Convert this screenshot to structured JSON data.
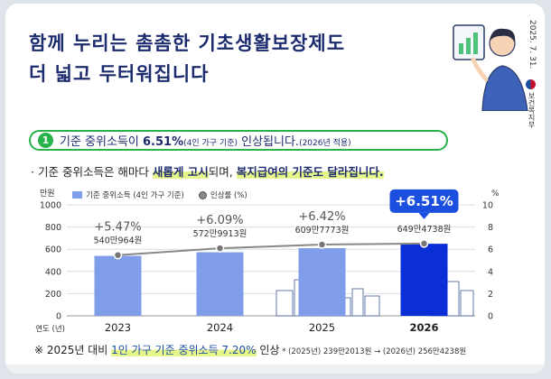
{
  "header": {
    "title_line1": "함께 누리는 촘촘한 기초생활보장제도",
    "title_line2": "더 넓고 두터워집니다",
    "date": "2025. 7. 31.",
    "ministry": "보건복지부"
  },
  "highlight": {
    "number": "1",
    "text_pre": "기준 중위소득이 ",
    "text_pct": "6.51%",
    "text_small": "(4인 가구 기준)",
    "text_post": " 인상됩니다.",
    "text_tail": "(2026년 적용)"
  },
  "subtitle": {
    "bullet": "·",
    "part1": "기준 중위소득은 해마다 ",
    "part2": "새롭게 고시",
    "part3": "되며, ",
    "part4": "복지급여의 기준도 달라집니다."
  },
  "note": {
    "prefix": "※ 2025년 대비 ",
    "highlight": "1인 가구 기준 중위소득 7.20%",
    "suffix": " 인상",
    "detail": " * (2025년) 239만2013원 → (2026년) 256만4238원"
  },
  "colors": {
    "bar": "#7f9de8",
    "bar_highlight": "#0b2fd6",
    "line": "#888888",
    "badge": "#1a4fe0",
    "accent_green": "#27b24a",
    "title": "#1d2c6e"
  },
  "chart_data": {
    "type": "bar",
    "categories": [
      "2023",
      "2024",
      "2025",
      "2026"
    ],
    "x_axis_prefix": "연도 (년)",
    "y_left_unit": "만원",
    "y_right_unit": "%",
    "y_left_ticks": [
      "1000",
      "800",
      "600",
      "400",
      "200",
      "0"
    ],
    "y_right_ticks": [
      "10",
      "8",
      "6",
      "4",
      "2",
      "0"
    ],
    "ylim_left": [
      0,
      1000
    ],
    "ylim_right": [
      0,
      10
    ],
    "legend": [
      {
        "name": "기준 중위소득 (4인 가구 기준)",
        "marker": "bar"
      },
      {
        "name": "인상률 (%)",
        "marker": "dot"
      }
    ],
    "series": [
      {
        "name": "기준 중위소득 (4인 가구 기준)",
        "axis": "left",
        "values": [
          540.0964,
          572.9913,
          609.7773,
          649.4738
        ],
        "labels": [
          "540만964원",
          "572만9913원",
          "609만7773원",
          "649만4738원"
        ]
      },
      {
        "name": "인상률 (%)",
        "axis": "right",
        "values": [
          5.47,
          6.09,
          6.42,
          6.51
        ],
        "labels": [
          "+5.47%",
          "+6.09%",
          "+6.42%",
          "+6.51%"
        ]
      }
    ],
    "highlight_category": "2026",
    "grid": true,
    "legend_position": "top-left"
  }
}
